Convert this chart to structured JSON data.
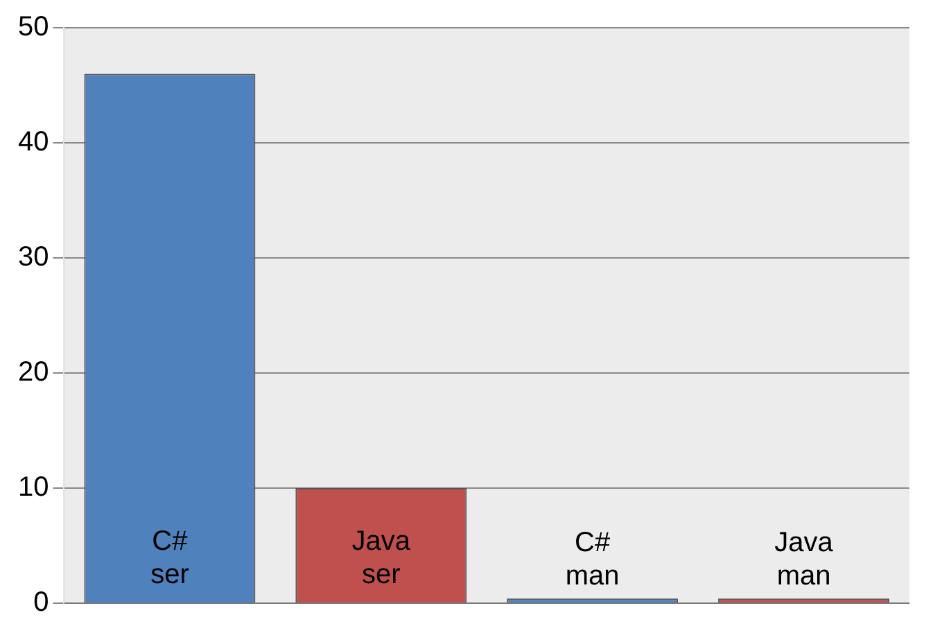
{
  "chart_data": {
    "type": "bar",
    "categories": [
      "C# ser",
      "Java ser",
      "C# man",
      "Java man"
    ],
    "values": [
      46,
      10,
      0.4,
      0.4
    ],
    "colors": [
      "#4f81bd",
      "#c0504d",
      "#4f81bd",
      "#c0504d"
    ],
    "ylim": [
      0,
      50
    ],
    "yticks": [
      0,
      10,
      20,
      30,
      40,
      50
    ],
    "grid": "y",
    "legend": false
  }
}
